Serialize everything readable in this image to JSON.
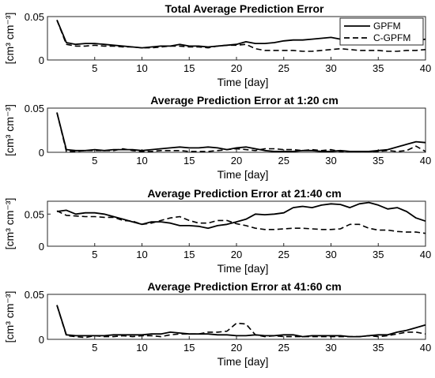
{
  "chart_data": [
    {
      "type": "line",
      "title": "Total Average Prediction Error",
      "xlabel": "Time [day]",
      "ylabel": "[cm³ cm⁻³]",
      "xlim": [
        0,
        40
      ],
      "ylim": [
        0,
        0.05
      ],
      "xticks": [
        "5",
        "10",
        "15",
        "20",
        "25",
        "30",
        "35",
        "40"
      ],
      "yticks": [
        "0",
        "0.05"
      ],
      "legend": {
        "position": "top-right",
        "entries": [
          "GPFM",
          "C-GPFM"
        ]
      },
      "grid": false,
      "series": [
        {
          "name": "GPFM",
          "style": "solid",
          "x": [
            1,
            2,
            3,
            4,
            5,
            6,
            7,
            8,
            9,
            10,
            11,
            12,
            13,
            14,
            15,
            16,
            17,
            18,
            19,
            20,
            21,
            22,
            23,
            24,
            25,
            26,
            27,
            28,
            29,
            30,
            31,
            32,
            33,
            34,
            35,
            36,
            37,
            38,
            39,
            40
          ],
          "y": [
            0.046,
            0.02,
            0.018,
            0.019,
            0.019,
            0.018,
            0.017,
            0.016,
            0.015,
            0.014,
            0.015,
            0.016,
            0.016,
            0.018,
            0.016,
            0.016,
            0.015,
            0.016,
            0.017,
            0.018,
            0.021,
            0.019,
            0.019,
            0.02,
            0.022,
            0.023,
            0.023,
            0.024,
            0.025,
            0.026,
            0.024,
            0.024,
            0.025,
            0.024,
            0.024,
            0.023,
            0.024,
            0.023,
            0.022,
            0.024
          ]
        },
        {
          "name": "C-GPFM",
          "style": "dashed",
          "x": [
            1,
            2,
            3,
            4,
            5,
            6,
            7,
            8,
            9,
            10,
            11,
            12,
            13,
            14,
            15,
            16,
            17,
            18,
            19,
            20,
            21,
            22,
            23,
            24,
            25,
            26,
            27,
            28,
            29,
            30,
            31,
            32,
            33,
            34,
            35,
            36,
            37,
            38,
            39,
            40
          ],
          "y": [
            0.046,
            0.018,
            0.016,
            0.016,
            0.017,
            0.016,
            0.016,
            0.015,
            0.015,
            0.014,
            0.014,
            0.015,
            0.016,
            0.016,
            0.015,
            0.015,
            0.014,
            0.016,
            0.017,
            0.017,
            0.018,
            0.013,
            0.011,
            0.011,
            0.011,
            0.011,
            0.01,
            0.01,
            0.011,
            0.012,
            0.013,
            0.012,
            0.011,
            0.011,
            0.011,
            0.01,
            0.01,
            0.011,
            0.011,
            0.012
          ]
        }
      ]
    },
    {
      "type": "line",
      "title": "Average Prediction Error at 1:20 cm",
      "xlabel": "Time [day]",
      "ylabel": "[cm³ cm⁻³]",
      "xlim": [
        0,
        40
      ],
      "ylim": [
        0,
        0.05
      ],
      "xticks": [
        "5",
        "10",
        "15",
        "20",
        "25",
        "30",
        "35",
        "40"
      ],
      "yticks": [
        "0",
        "0.05"
      ],
      "grid": false,
      "series": [
        {
          "name": "GPFM",
          "style": "solid",
          "x": [
            1,
            2,
            3,
            4,
            5,
            6,
            7,
            8,
            9,
            10,
            11,
            12,
            13,
            14,
            15,
            16,
            17,
            18,
            19,
            20,
            21,
            22,
            23,
            24,
            25,
            26,
            27,
            28,
            29,
            30,
            31,
            32,
            33,
            34,
            35,
            36,
            37,
            38,
            39,
            40
          ],
          "y": [
            0.045,
            0.003,
            0.002,
            0.002,
            0.003,
            0.002,
            0.003,
            0.003,
            0.003,
            0.002,
            0.003,
            0.004,
            0.005,
            0.006,
            0.005,
            0.005,
            0.006,
            0.005,
            0.003,
            0.005,
            0.006,
            0.004,
            0.002,
            0.001,
            0.001,
            0.001,
            0.002,
            0.002,
            0.001,
            0.001,
            0.002,
            0.001,
            0.001,
            0.001,
            0.002,
            0.003,
            0.006,
            0.009,
            0.012,
            0.011
          ]
        },
        {
          "name": "C-GPFM",
          "style": "dashed",
          "x": [
            1,
            2,
            3,
            4,
            5,
            6,
            7,
            8,
            9,
            10,
            11,
            12,
            13,
            14,
            15,
            16,
            17,
            18,
            19,
            20,
            21,
            22,
            23,
            24,
            25,
            26,
            27,
            28,
            29,
            30,
            31,
            32,
            33,
            34,
            35,
            36,
            37,
            38,
            39,
            40
          ],
          "y": [
            0.045,
            0.001,
            0.001,
            0.002,
            0.002,
            0.002,
            0.002,
            0.004,
            0.002,
            0.001,
            0.001,
            0.002,
            0.002,
            0.002,
            0.001,
            0.001,
            0.001,
            0.002,
            0.003,
            0.004,
            0.003,
            0.002,
            0.004,
            0.004,
            0.003,
            0.003,
            0.002,
            0.003,
            0.002,
            0.003,
            0.001,
            0.001,
            0.001,
            0.001,
            0.001,
            0.002,
            0.001,
            0.002,
            0.007,
            0.001
          ]
        }
      ]
    },
    {
      "type": "line",
      "title": "Average Prediction Error at 21:40 cm",
      "xlabel": "Time [day]",
      "ylabel": "[cm³ cm⁻³]",
      "xlim": [
        0,
        40
      ],
      "ylim": [
        0,
        0.07
      ],
      "xticks": [
        "5",
        "10",
        "15",
        "20",
        "25",
        "30",
        "35",
        "40"
      ],
      "yticks": [
        "0",
        "0.05"
      ],
      "grid": false,
      "series": [
        {
          "name": "GPFM",
          "style": "solid",
          "x": [
            1,
            2,
            3,
            4,
            5,
            6,
            7,
            8,
            9,
            10,
            11,
            12,
            13,
            14,
            15,
            16,
            17,
            18,
            19,
            20,
            21,
            22,
            23,
            24,
            25,
            26,
            27,
            28,
            29,
            30,
            31,
            32,
            33,
            34,
            35,
            36,
            37,
            38,
            39,
            40
          ],
          "y": [
            0.054,
            0.056,
            0.05,
            0.052,
            0.052,
            0.05,
            0.046,
            0.042,
            0.038,
            0.034,
            0.038,
            0.038,
            0.036,
            0.032,
            0.032,
            0.031,
            0.028,
            0.032,
            0.034,
            0.038,
            0.042,
            0.05,
            0.049,
            0.05,
            0.052,
            0.06,
            0.062,
            0.06,
            0.064,
            0.066,
            0.065,
            0.06,
            0.066,
            0.068,
            0.064,
            0.058,
            0.06,
            0.054,
            0.044,
            0.039
          ]
        },
        {
          "name": "C-GPFM",
          "style": "dashed",
          "x": [
            1,
            2,
            3,
            4,
            5,
            6,
            7,
            8,
            9,
            10,
            11,
            12,
            13,
            14,
            15,
            16,
            17,
            18,
            19,
            20,
            21,
            22,
            23,
            24,
            25,
            26,
            27,
            28,
            29,
            30,
            31,
            32,
            33,
            34,
            35,
            36,
            37,
            38,
            39,
            40
          ],
          "y": [
            0.055,
            0.048,
            0.047,
            0.046,
            0.046,
            0.045,
            0.045,
            0.04,
            0.039,
            0.034,
            0.036,
            0.04,
            0.044,
            0.046,
            0.04,
            0.036,
            0.036,
            0.04,
            0.04,
            0.035,
            0.032,
            0.028,
            0.026,
            0.026,
            0.027,
            0.028,
            0.028,
            0.027,
            0.026,
            0.026,
            0.027,
            0.034,
            0.034,
            0.028,
            0.025,
            0.025,
            0.023,
            0.022,
            0.022,
            0.02
          ]
        }
      ]
    },
    {
      "type": "line",
      "title": "Average Prediction Error at 41:60 cm",
      "xlabel": "Time [day]",
      "ylabel": "[cm³ cm⁻³]",
      "xlim": [
        0,
        40
      ],
      "ylim": [
        0,
        0.05
      ],
      "xticks": [
        "5",
        "10",
        "15",
        "20",
        "25",
        "30",
        "35",
        "40"
      ],
      "yticks": [
        "0",
        "0.05"
      ],
      "grid": false,
      "series": [
        {
          "name": "GPFM",
          "style": "solid",
          "x": [
            1,
            2,
            3,
            4,
            5,
            6,
            7,
            8,
            9,
            10,
            11,
            12,
            13,
            14,
            15,
            16,
            17,
            18,
            19,
            20,
            21,
            22,
            23,
            24,
            25,
            26,
            27,
            28,
            29,
            30,
            31,
            32,
            33,
            34,
            35,
            36,
            37,
            38,
            39,
            40
          ],
          "y": [
            0.038,
            0.005,
            0.004,
            0.004,
            0.004,
            0.004,
            0.005,
            0.005,
            0.005,
            0.005,
            0.006,
            0.006,
            0.008,
            0.007,
            0.006,
            0.006,
            0.006,
            0.005,
            0.005,
            0.004,
            0.004,
            0.005,
            0.004,
            0.004,
            0.005,
            0.005,
            0.003,
            0.004,
            0.004,
            0.004,
            0.004,
            0.003,
            0.003,
            0.004,
            0.005,
            0.005,
            0.008,
            0.01,
            0.013,
            0.016
          ]
        },
        {
          "name": "C-GPFM",
          "style": "dashed",
          "x": [
            1,
            2,
            3,
            4,
            5,
            6,
            7,
            8,
            9,
            10,
            11,
            12,
            13,
            14,
            15,
            16,
            17,
            18,
            19,
            20,
            21,
            22,
            23,
            24,
            25,
            26,
            27,
            28,
            29,
            30,
            31,
            32,
            33,
            34,
            35,
            36,
            37,
            38,
            39,
            40
          ],
          "y": [
            0.038,
            0.004,
            0.003,
            0.002,
            0.004,
            0.003,
            0.003,
            0.004,
            0.003,
            0.004,
            0.004,
            0.003,
            0.005,
            0.006,
            0.006,
            0.006,
            0.008,
            0.008,
            0.009,
            0.018,
            0.017,
            0.005,
            0.003,
            0.004,
            0.003,
            0.003,
            0.003,
            0.003,
            0.003,
            0.003,
            0.003,
            0.003,
            0.003,
            0.004,
            0.003,
            0.004,
            0.006,
            0.008,
            0.008,
            0.006
          ]
        }
      ]
    }
  ]
}
